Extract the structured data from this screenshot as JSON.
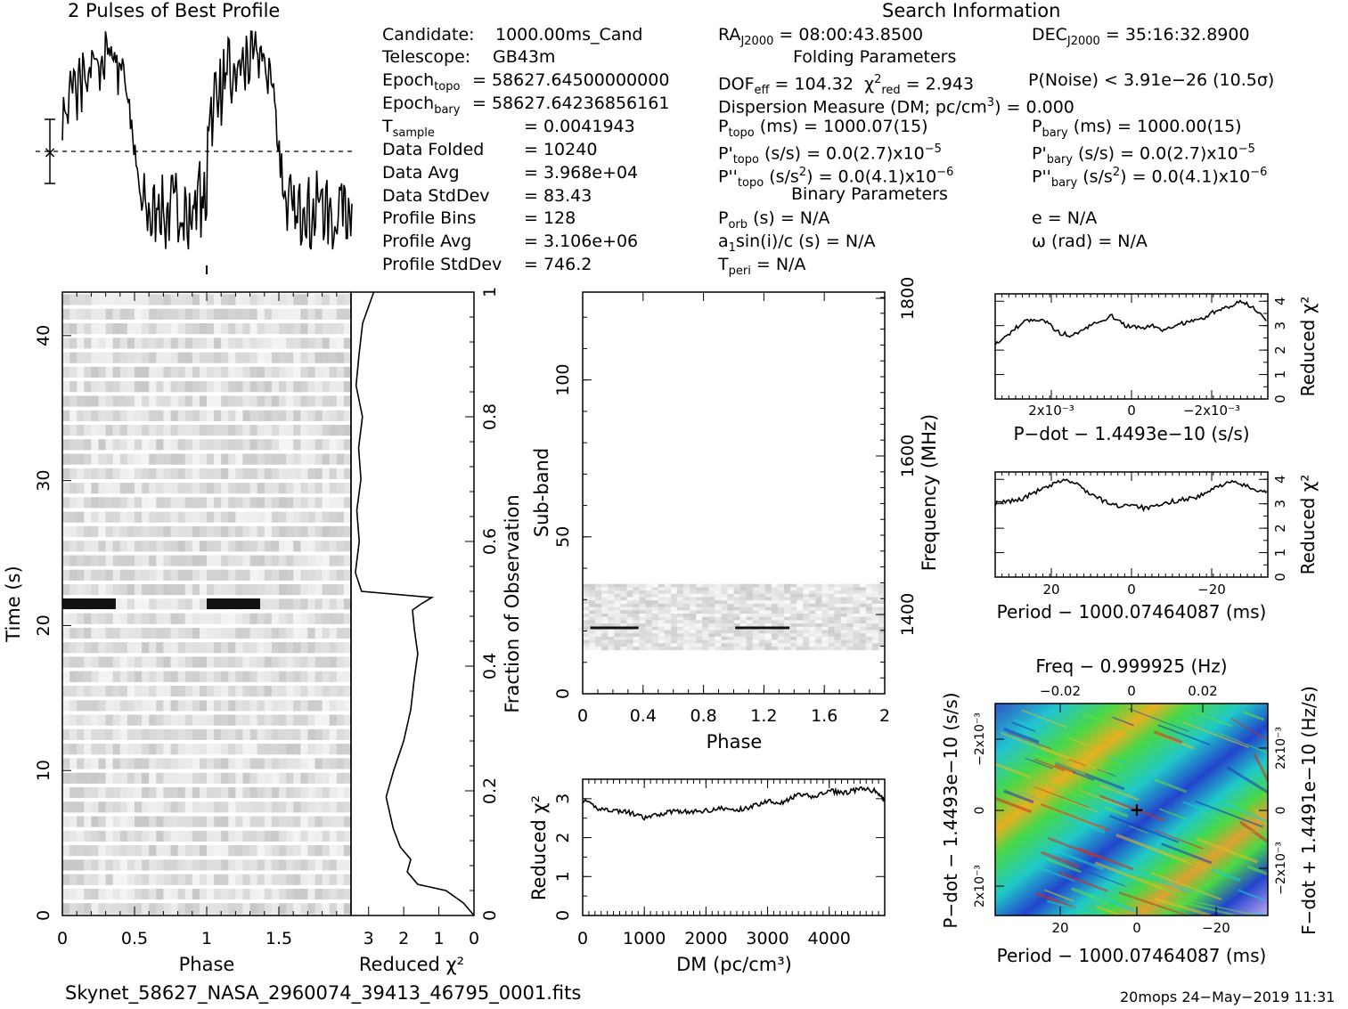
{
  "header": {
    "profile_title": "2 Pulses of Best Profile",
    "search_title": "Search Information",
    "folding_title": "Folding Parameters",
    "binary_title": "Binary Parameters"
  },
  "info_left": [
    {
      "k": "Candidate:",
      "v": "1000.00ms_Cand"
    },
    {
      "k": "Telescope:",
      "v": "GB43m"
    },
    {
      "k": "Epoch",
      "sub": "topo",
      "v": "= 58627.64500000000"
    },
    {
      "k": "Epoch",
      "sub": "bary",
      "v": "= 58627.64236856161"
    },
    {
      "k": "T",
      "sub": "sample",
      "v": "=   0.0041943"
    },
    {
      "k": "Data Folded",
      "v": "=   10240"
    },
    {
      "k": "Data Avg",
      "v": "=   3.968e+04"
    },
    {
      "k": "Data StdDev",
      "v": "=   83.43"
    },
    {
      "k": "Profile Bins",
      "v": "=   128"
    },
    {
      "k": "Profile Avg",
      "v": "=   3.106e+06"
    },
    {
      "k": "Profile StdDev",
      "v": "=   746.2"
    }
  ],
  "info_mid": {
    "ra": "RA",
    "ra_sub": "J2000",
    "ra_val": "= 08:00:43.8500",
    "dof": "DOF",
    "dof_sub": "eff",
    "dof_val": "= 104.32",
    "chi": "χ",
    "chi_sup": "2",
    "chi_sub": "red",
    "chi_val": "= 2.943",
    "dm": "Dispersion Measure (DM; pc/cm",
    "dm_sup": "3",
    "dm_val": ") = 0.000",
    "ptopo": "P",
    "ptopo_sub": "topo",
    "ptopo_val": "(ms) =  1000.07(15)",
    "pdtopo": "P'",
    "pdtopo_sub": "topo",
    "pdtopo_val": "(s/s) = 0.0(2.7)x10",
    "pdtopo_exp": "−5",
    "pddtopo": "P''",
    "pddtopo_sub": "topo",
    "pddtopo_val": "(s/s",
    "pddtopo_sup": "2",
    "pddtopo_val2": ") = 0.0(4.1)x10",
    "pddtopo_exp": "−6",
    "porb": "P",
    "porb_sub": "orb",
    "porb_val": "(s) = N/A",
    "a1": "a",
    "a1_sub": "1",
    "a1_val": "sin(i)/c (s) = N/A",
    "tperi": "T",
    "tperi_sub": "peri",
    "tperi_val": "= N/A"
  },
  "info_right": {
    "dec": "DEC",
    "dec_sub": "J2000",
    "dec_val": "= 35:16:32.8900",
    "pnoise": "P(Noise) < 3.91e−26  (10.5σ)",
    "pbary": "P",
    "pbary_sub": "bary",
    "pbary_val": "(ms) =  1000.00(15)",
    "pdbary": "P'",
    "pdbary_sub": "bary",
    "pdbary_val": "(s/s) = 0.0(2.7)x10",
    "pdbary_exp": "−5",
    "pddbary": "P''",
    "pddbary_sub": "bary",
    "pddbary_val": "(s/s",
    "pddbary_sup": "2",
    "pddbary_val2": ") = 0.0(4.1)x10",
    "pddbary_exp": "−6",
    "ecc": "e = N/A",
    "omega": "ω (rad) = N/A"
  },
  "footer": {
    "filename": "Skynet_58627_NASA_2960074_39413_46795_0001.fits",
    "stamp": "20mops 24−May−2019 11:31"
  },
  "chart_data": [
    {
      "id": "profile",
      "type": "line",
      "title": "2 Pulses of Best Profile",
      "x": "phase 0-2 (two pulses)",
      "values_one_pulse": [
        0.62,
        0.7,
        0.58,
        0.78,
        0.72,
        0.8,
        0.66,
        0.85,
        0.74,
        0.88,
        0.7,
        0.82,
        0.76,
        0.9,
        0.8,
        0.92,
        0.78,
        0.95,
        0.84,
        0.97,
        0.86,
        1.0,
        0.88,
        0.94,
        0.82,
        0.9,
        0.8,
        0.86,
        0.76,
        0.72,
        0.6,
        0.5,
        0.4,
        0.3,
        0.24,
        0.18,
        0.26,
        0.14,
        0.2,
        0.1,
        0.22,
        0.12,
        0.28,
        0.16,
        0.24,
        0.08,
        0.2,
        0.12,
        0.26,
        0.18,
        0.3,
        0.14,
        0.22,
        0.1,
        0.24,
        0.02,
        0.18,
        0.12,
        0.28,
        0.2,
        0.32,
        0.16,
        0.26,
        0.12
      ]
    },
    {
      "id": "time_phase",
      "type": "heatmap",
      "xlabel": "Phase",
      "ylabel": "Time (s)",
      "xlim": [
        0,
        2
      ],
      "ylim": [
        0,
        43
      ],
      "xticks": [
        "0",
        "0.5",
        "1",
        "1.5"
      ],
      "yticks": [
        "0",
        "10",
        "20",
        "30",
        "40"
      ],
      "pulse_time_s": 21.5,
      "pulse_phase_range": [
        0,
        0.37
      ]
    },
    {
      "id": "time_redchi",
      "type": "line",
      "xlabel": "Reduced χ²",
      "ylabel": "Fraction of Observation",
      "xticks": [
        "3",
        "2",
        "1",
        "0"
      ],
      "yticks": [
        "0",
        "0.2",
        "0.4",
        "0.6",
        "0.8",
        "1"
      ],
      "points": [
        [
          0,
          0.0
        ],
        [
          0.3,
          0.02
        ],
        [
          0.8,
          0.04
        ],
        [
          1.6,
          0.05
        ],
        [
          1.9,
          0.07
        ],
        [
          1.8,
          0.09
        ],
        [
          2.1,
          0.11
        ],
        [
          2.3,
          0.14
        ],
        [
          2.5,
          0.19
        ],
        [
          2.3,
          0.23
        ],
        [
          2.0,
          0.28
        ],
        [
          1.8,
          0.33
        ],
        [
          1.7,
          0.38
        ],
        [
          1.6,
          0.42
        ],
        [
          1.7,
          0.46
        ],
        [
          1.75,
          0.49
        ],
        [
          1.5,
          0.5
        ],
        [
          1.2,
          0.51
        ],
        [
          3.2,
          0.52
        ],
        [
          3.3,
          0.55
        ],
        [
          3.25,
          0.6
        ],
        [
          3.3,
          0.65
        ],
        [
          3.2,
          0.7
        ],
        [
          3.3,
          0.75
        ],
        [
          3.2,
          0.8
        ],
        [
          3.3,
          0.85
        ],
        [
          3.2,
          0.9
        ],
        [
          3.1,
          0.95
        ],
        [
          2.9,
          1.0
        ]
      ]
    },
    {
      "id": "subband_phase",
      "type": "heatmap",
      "xlabel": "Phase",
      "ylabel": "Sub-band",
      "y2label": "Frequency (MHz)",
      "xlim": [
        0,
        2
      ],
      "ylim": [
        0,
        128
      ],
      "xticks": [
        "0",
        "0.4",
        "0.8",
        "1.2",
        "1.6",
        "2"
      ],
      "yticks": [
        "0",
        "50",
        "100"
      ],
      "y2ticks": [
        "1400",
        "1600",
        "1800"
      ],
      "band_subbands": [
        14,
        35
      ],
      "pulse_subband": 21
    },
    {
      "id": "dm_curve",
      "type": "line",
      "xlabel": "DM (pc/cm³)",
      "ylabel": "Reduced χ²",
      "xlim": [
        0,
        4900
      ],
      "ylim": [
        0,
        3.5
      ],
      "xticks": [
        "0",
        "1000",
        "2000",
        "3000",
        "4000"
      ],
      "yticks": [
        "0",
        "1",
        "2",
        "3"
      ],
      "x": [
        0,
        250,
        500,
        750,
        1000,
        1250,
        1500,
        1750,
        2000,
        2250,
        2500,
        2750,
        3000,
        3250,
        3500,
        3750,
        4000,
        4250,
        4500,
        4750,
        4900
      ],
      "y": [
        2.95,
        2.75,
        2.7,
        2.65,
        2.5,
        2.6,
        2.7,
        2.65,
        2.7,
        2.75,
        2.7,
        2.8,
        2.95,
        2.9,
        3.1,
        3.05,
        3.2,
        3.15,
        3.25,
        3.2,
        2.95
      ]
    },
    {
      "id": "pdot_curve",
      "type": "line",
      "xlabel": "P−dot − 1.4493e−10 (s/s)",
      "ylabel": "Reduced χ²",
      "xticks": [
        "2x10⁻³",
        "0",
        "−2x10⁻³"
      ],
      "yticks": [
        "0",
        "1",
        "2",
        "3",
        "4"
      ],
      "y": [
        2.3,
        2.6,
        3.1,
        3.3,
        3.1,
        2.7,
        2.6,
        2.9,
        3.2,
        3.4,
        3.0,
        2.9,
        3.0,
        2.8,
        3.0,
        3.2,
        3.3,
        3.6,
        3.8,
        4.0,
        3.7,
        3.2
      ]
    },
    {
      "id": "period_curve",
      "type": "line",
      "xlabel": "Period − 1000.07464087 (ms)",
      "ylabel": "Reduced χ²",
      "xticks": [
        "20",
        "0",
        "−20"
      ],
      "yticks": [
        "0",
        "1",
        "2",
        "3",
        "4"
      ],
      "y": [
        3.0,
        3.1,
        3.2,
        3.5,
        3.7,
        4.0,
        3.8,
        3.4,
        3.1,
        2.9,
        3.0,
        2.8,
        2.9,
        3.1,
        3.2,
        3.3,
        3.6,
        3.9,
        3.8,
        3.6,
        3.5
      ]
    },
    {
      "id": "ppdot_map",
      "type": "heatmap",
      "title": "Freq − 0.999925 (Hz)",
      "xlabel": "Period − 1000.07464087 (ms)",
      "ylabel": "P−dot − 1.4493e−10 (s/s)",
      "y2label": "F−dot + 1.4491e−10 (Hz/s)",
      "xticks": [
        "20",
        "0",
        "−20"
      ],
      "x2ticks": [
        "−0.02",
        "0",
        "0.02"
      ],
      "yticks": [
        "2x10⁻³",
        "0",
        "−2x10⁻³"
      ],
      "y2ticks": [
        "−2x10⁻³",
        "0",
        "2x10⁻³"
      ]
    }
  ]
}
